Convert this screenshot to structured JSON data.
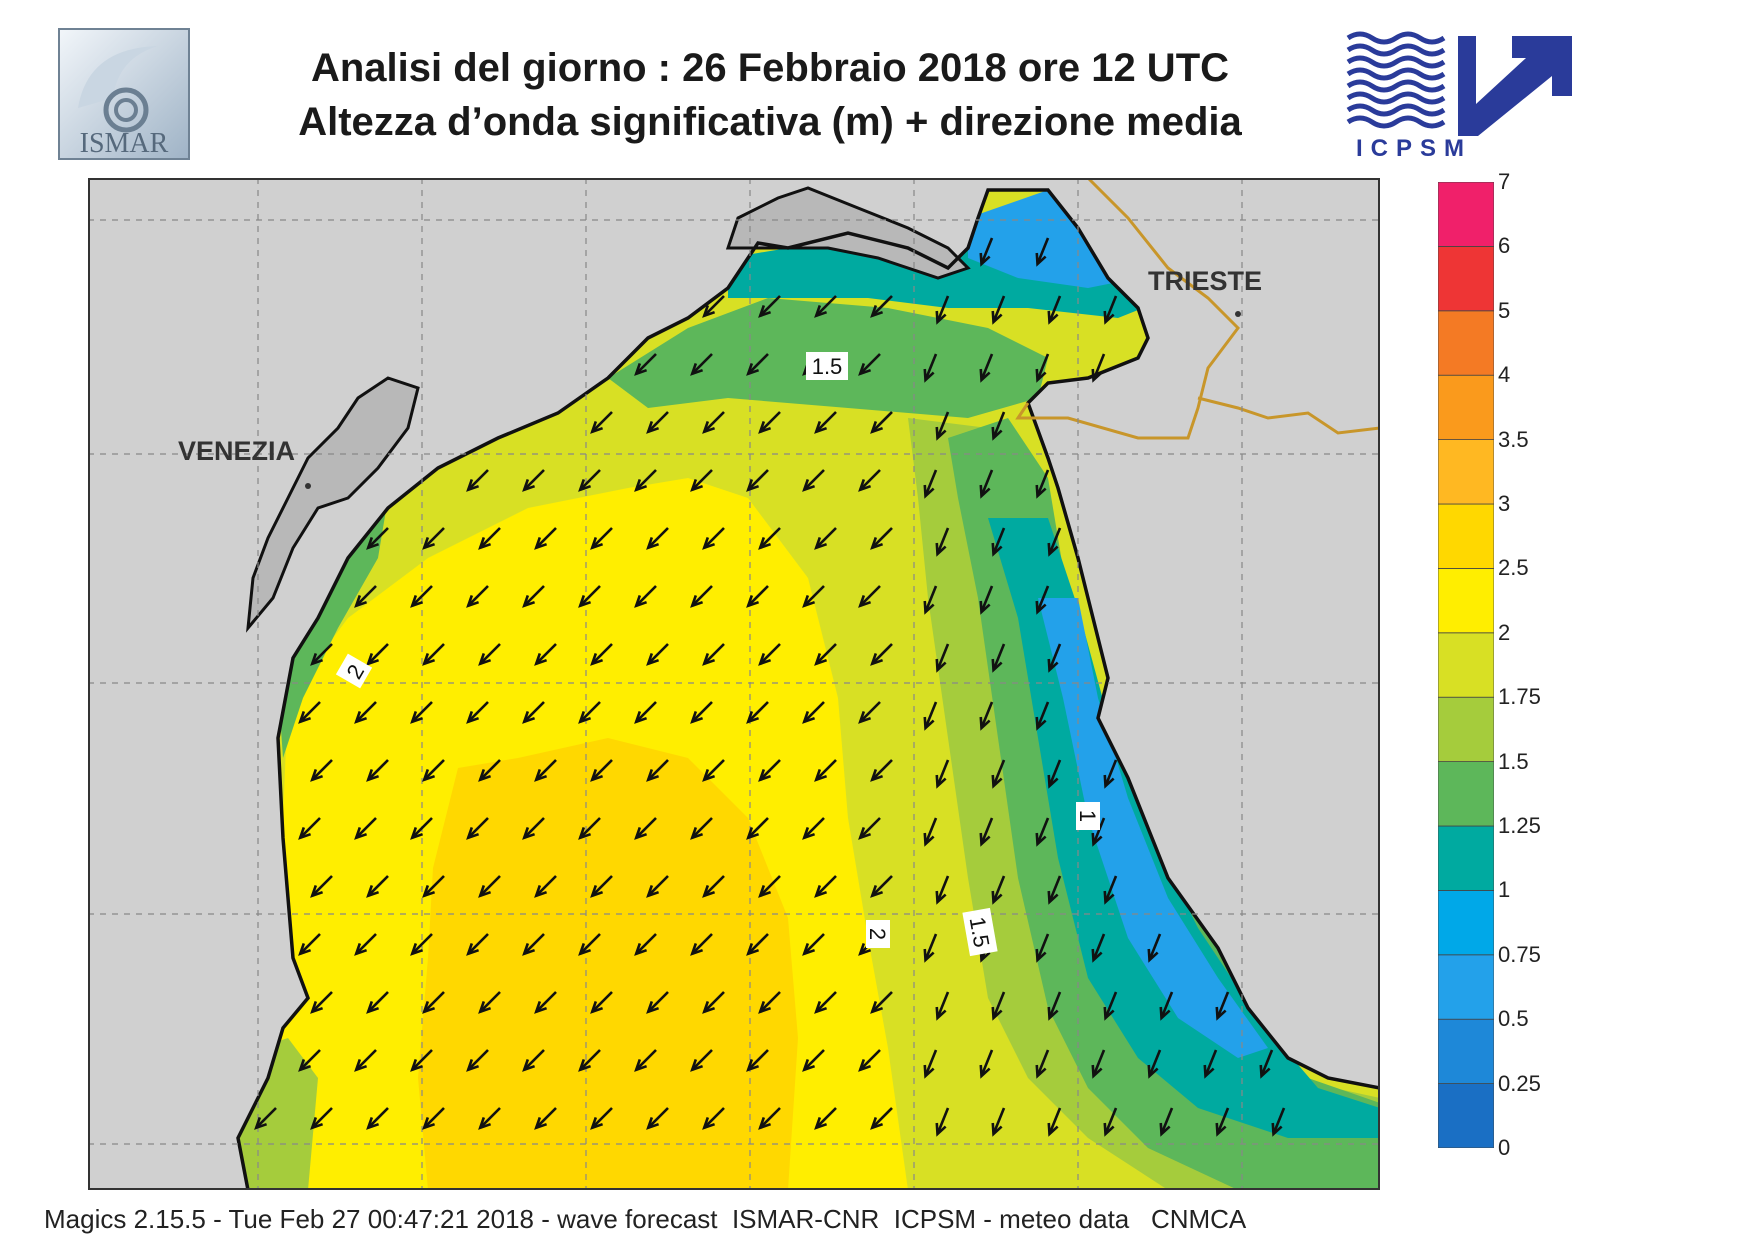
{
  "header": {
    "title_line1": "Analisi del giorno :  26  Febbraio 2018   ore 12 UTC",
    "title_line2": "Altezza d’onda significativa (m) + direzione media"
  },
  "logos": {
    "left": {
      "name": "ISMAR",
      "text": "ISMAR"
    },
    "right": {
      "name": "ICPSM",
      "text": "ICPSM"
    }
  },
  "map": {
    "cities": [
      {
        "name": "VENEZIA"
      },
      {
        "name": "TRIESTE"
      }
    ],
    "contour_labels": [
      "1.5",
      "2",
      "1",
      "2",
      "1.5"
    ],
    "arrow_direction": "towards south-west",
    "colors": {
      "land": "#d0d0d0",
      "lagoon_land": "#b8b8b8",
      "border": "#c8962a",
      "grid": "#888888"
    }
  },
  "legend": {
    "unit": "m",
    "ticks": [
      "0",
      "0.25",
      "0.5",
      "0.75",
      "1",
      "1.25",
      "1.5",
      "1.75",
      "2",
      "2.5",
      "3",
      "3.5",
      "4",
      "5",
      "6",
      "7"
    ],
    "colors": [
      "#1a6fc4",
      "#1e88d8",
      "#23a1ea",
      "#00a8e8",
      "#00aaa0",
      "#5db75a",
      "#a5cc3c",
      "#d8e024",
      "#ffee00",
      "#ffd800",
      "#ffb822",
      "#fa9a1c",
      "#f47a24",
      "#ee3535",
      "#f0206a"
    ]
  },
  "footer": {
    "text": "Magics 2.15.5 - Tue Feb 27 00:47:21 2018 - wave forecast  ISMAR-CNR  ICPSM - meteo data   CNMCA"
  }
}
